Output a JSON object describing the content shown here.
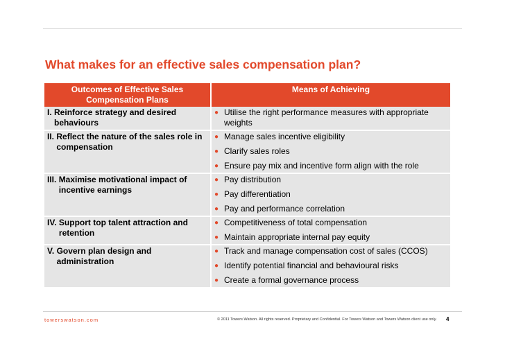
{
  "title": "What makes for an effective sales compensation plan?",
  "table": {
    "headers": {
      "outcomes": "Outcomes of Effective Sales Compensation Plans",
      "means": "Means of Achieving"
    },
    "rows": [
      {
        "numeral": "I.",
        "outcome": "Reinforce strategy and desired behaviours",
        "means": [
          "Utilise the right performance measures with appropriate weights"
        ]
      },
      {
        "numeral": "II.",
        "outcome": "Reflect the nature of the sales role in compensation",
        "means": [
          "Manage sales incentive eligibility",
          "Clarify sales roles",
          "Ensure pay mix and incentive form align with the role"
        ]
      },
      {
        "numeral": "III.",
        "outcome": "Maximise motivational impact of incentive earnings",
        "means": [
          "Pay distribution",
          "Pay differentiation",
          "Pay and performance correlation"
        ]
      },
      {
        "numeral": "IV.",
        "outcome": "Support top talent attraction and retention",
        "means": [
          "Competitiveness of total compensation",
          "Maintain appropriate internal pay equity"
        ]
      },
      {
        "numeral": "V.",
        "outcome": "Govern plan design and administration",
        "means": [
          "Track and manage compensation cost of sales (CCOS)",
          "Identify potential financial and behavioural risks",
          "Create a formal governance process"
        ]
      }
    ]
  },
  "footer": {
    "brand": "towerswatson.com",
    "copyright": "© 2011 Towers Watson. All rights reserved. Proprietary and Confidential. For Towers Watson and Towers Watson client use only.",
    "page": "4"
  },
  "colors": {
    "accent": "#e2492b",
    "cell_background": "#e5e5e5"
  }
}
